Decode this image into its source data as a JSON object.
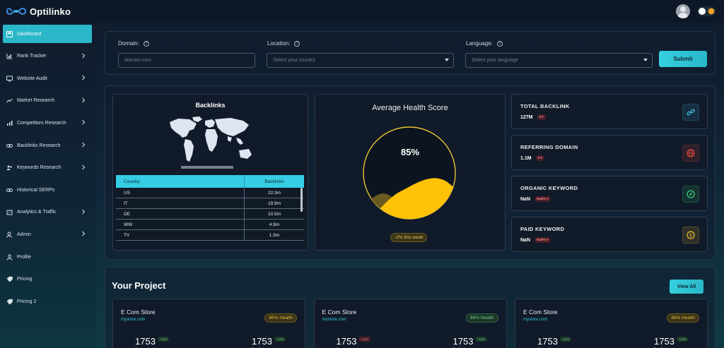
{
  "app": {
    "name": "Optilinko"
  },
  "sidebar": {
    "items": [
      {
        "label": "Dashboard",
        "icon": "dashboard-icon",
        "active": true,
        "chevron": false
      },
      {
        "label": "Rank Tracker",
        "icon": "chart-bar-icon",
        "chevron": true
      },
      {
        "label": "Website Audit",
        "icon": "monitor-icon",
        "chevron": true
      },
      {
        "label": "Market Research",
        "icon": "trend-icon",
        "chevron": true
      },
      {
        "label": "Competitors Research",
        "icon": "bars-icon",
        "chevron": true
      },
      {
        "label": "Backlinks Research",
        "icon": "link-icon",
        "chevron": true
      },
      {
        "label": "Keywords Research",
        "icon": "users-icon",
        "chevron": true
      },
      {
        "label": "Historical SERPs",
        "icon": "history-icon",
        "chevron": false
      },
      {
        "label": "Analytics & Traffic",
        "icon": "building-icon",
        "chevron": true
      },
      {
        "label": "Admin",
        "icon": "admin-icon",
        "chevron": true
      },
      {
        "label": "Profile",
        "icon": "user-icon",
        "chevron": false
      },
      {
        "label": "Pricing",
        "icon": "tag-icon",
        "chevron": false
      },
      {
        "label": "Pricing 2",
        "icon": "tag-icon",
        "chevron": false
      }
    ]
  },
  "search": {
    "domain_label": "Domain:",
    "domain_placeholder": "domain.com",
    "location_label": "Location:",
    "location_placeholder": "Select your country",
    "language_label": "Language:",
    "language_placeholder": "Select your language",
    "submit_label": "Submit"
  },
  "backlinks": {
    "title": "Backlinks",
    "col_country": "Country",
    "col_backlinks": "Backlinks",
    "rows": [
      {
        "country": "US",
        "value": "22.3m"
      },
      {
        "country": "IT",
        "value": "19.9m"
      },
      {
        "country": "DE",
        "value": "10.5m"
      },
      {
        "country": "WW",
        "value": "4.9m"
      },
      {
        "country": "TV",
        "value": "1.3m"
      }
    ]
  },
  "health": {
    "title": "Average Health Score",
    "percent_label": "85%",
    "level": 0.85,
    "change_label": "-2% this week"
  },
  "stats": [
    {
      "title": "TOTAL BACKLINK",
      "value": "127M",
      "change": "0 ▾",
      "icon": "link-icon",
      "color": "#3fb6d6"
    },
    {
      "title": "REFERRING DOMAIN",
      "value": "1.1M",
      "change": "0 ▾",
      "icon": "globe-icon",
      "color": "#e0483f"
    },
    {
      "title": "ORGANIC KEYWORD",
      "value": "NaN",
      "change": "NaN% ▾",
      "icon": "compass-icon",
      "color": "#3fcf78"
    },
    {
      "title": "PAID KEYWORD",
      "value": "NaN",
      "change": "NaN% ▾",
      "icon": "dollar-icon",
      "color": "#f1c232"
    }
  ],
  "projects": {
    "title": "Your Project",
    "view_all": "View All",
    "items": [
      {
        "name": "E Com Store",
        "url": "mystore.com",
        "health": "86% Health",
        "health_tone": "yellow",
        "keywords": "1753",
        "kw_change": "+12%",
        "kw_tone": "g",
        "kw_label": "Keywords",
        "backlinks": "1753",
        "bl_change": "+12%",
        "bl_tone": "g",
        "bl_label": "Backlinks"
      },
      {
        "name": "E Com Store",
        "url": "mystore.com",
        "health": "86% Health",
        "health_tone": "green",
        "keywords": "1753",
        "kw_change": "+12%",
        "kw_tone": "r",
        "kw_label": "Keywords",
        "backlinks": "1753",
        "bl_change": "+12%",
        "bl_tone": "g",
        "bl_label": "Backlinks"
      },
      {
        "name": "E Com Store",
        "url": "mystore.com",
        "health": "86% Health",
        "health_tone": "yellow",
        "keywords": "1753",
        "kw_change": "+12%",
        "kw_tone": "g",
        "kw_label": "Keywords",
        "backlinks": "1753",
        "bl_change": "+12%",
        "bl_tone": "g",
        "bl_label": "Backlinks"
      }
    ]
  }
}
